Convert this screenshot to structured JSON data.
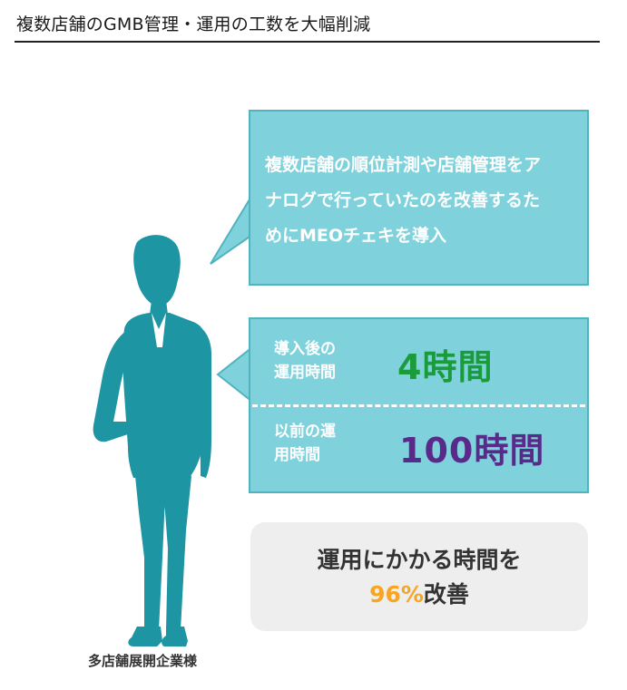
{
  "page": {
    "title": "複数店舗のGMB管理・運用の工数を大幅削減"
  },
  "colors": {
    "bubble_fill": "#7fd2db",
    "bubble_border": "#4fb4c0",
    "silhouette": "#1e95a2",
    "after_value": "#1a9b3c",
    "before_value": "#5a2a8a",
    "percent": "#f6a623"
  },
  "person": {
    "caption": "多店舗展開企業様"
  },
  "quote": {
    "line1": "複数店舗の順位計測や店舗管理をア",
    "line2": "ナログで行っていたのを改善するた",
    "line3": "めにMEOチェキを導入"
  },
  "comparison": {
    "after": {
      "label_line1": "導入後の",
      "label_line2": "運用時間",
      "value": "4時間"
    },
    "before": {
      "label_line1": "以前の運",
      "label_line2": "用時間",
      "value": "100時間"
    }
  },
  "result": {
    "line1": "運用にかかる時間を",
    "percent": "96%",
    "suffix": "改善"
  }
}
